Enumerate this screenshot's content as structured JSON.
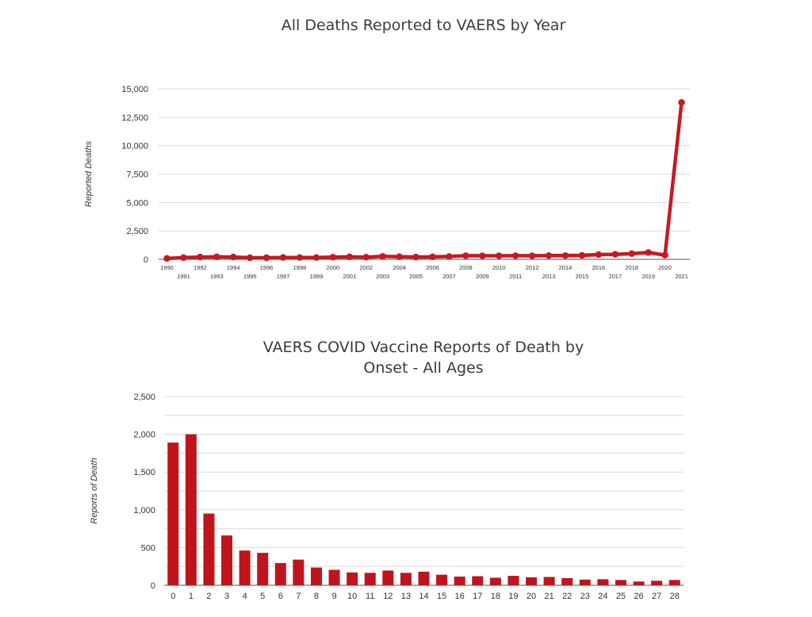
{
  "chart_data": [
    {
      "type": "line",
      "title": "All Deaths Reported to VAERS by Year",
      "ylabel": "Reported Deaths",
      "xlabel": "",
      "ylim": [
        0,
        15000
      ],
      "yticks": [
        "0",
        "2,500",
        "5,000",
        "7,500",
        "10,000",
        "12,500",
        "15,000"
      ],
      "ytick_values": [
        0,
        2500,
        5000,
        7500,
        10000,
        12500,
        15000
      ],
      "grid": true,
      "color": "#c8191f",
      "x": [
        "1990",
        "1991",
        "1992",
        "1993",
        "1994",
        "1995",
        "1996",
        "1997",
        "1998",
        "1999",
        "2000",
        "2001",
        "2002",
        "2003",
        "2004",
        "2005",
        "2006",
        "2007",
        "2008",
        "2009",
        "2010",
        "2011",
        "2012",
        "2013",
        "2014",
        "2015",
        "2016",
        "2017",
        "2018",
        "2019",
        "2020",
        "2021"
      ],
      "values": [
        80,
        150,
        200,
        220,
        200,
        140,
        140,
        160,
        160,
        160,
        190,
        220,
        190,
        260,
        230,
        200,
        220,
        250,
        320,
        310,
        310,
        320,
        310,
        330,
        330,
        350,
        420,
        440,
        500,
        600,
        370,
        13800
      ]
    },
    {
      "type": "bar",
      "title": "VAERS COVID Vaccine Reports of Death by Onset - All Ages",
      "title_lines": [
        "VAERS COVID Vaccine Reports of Death by",
        "Onset - All Ages"
      ],
      "ylabel": "Reports of Death",
      "xlabel": "",
      "ylim": [
        0,
        2500
      ],
      "yticks": [
        "0",
        "500",
        "1,000",
        "1,500",
        "2,000",
        "2,500"
      ],
      "ytick_values": [
        0,
        500,
        1000,
        1500,
        2000,
        2500
      ],
      "grid": true,
      "color": "#c0141c",
      "categories": [
        "0",
        "1",
        "2",
        "3",
        "4",
        "5",
        "6",
        "7",
        "8",
        "9",
        "10",
        "11",
        "12",
        "13",
        "14",
        "15",
        "16",
        "17",
        "18",
        "19",
        "20",
        "21",
        "22",
        "23",
        "24",
        "25",
        "26",
        "27",
        "28"
      ],
      "values": [
        1890,
        2000,
        950,
        660,
        460,
        430,
        295,
        340,
        235,
        205,
        170,
        165,
        195,
        165,
        180,
        140,
        115,
        120,
        100,
        125,
        105,
        110,
        95,
        75,
        80,
        70,
        50,
        60,
        70
      ]
    }
  ]
}
